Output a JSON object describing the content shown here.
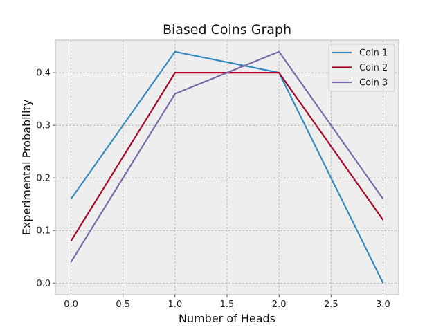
{
  "chart_data": {
    "type": "line",
    "title": "Biased Coins Graph",
    "xlabel": "Number of Heads",
    "ylabel": "Experimental Probability",
    "x": [
      0,
      1,
      2,
      3
    ],
    "xlim": [
      -0.15,
      3.15
    ],
    "ylim": [
      -0.022,
      0.462
    ],
    "xticks": [
      "0.0",
      "0.5",
      "1.0",
      "1.5",
      "2.0",
      "2.5",
      "3.0"
    ],
    "yticks": [
      "0.0",
      "0.1",
      "0.2",
      "0.3",
      "0.4"
    ],
    "grid": true,
    "legend_position": "top-right",
    "series": [
      {
        "name": "Coin 1",
        "color": "#348ABD",
        "values": [
          0.16,
          0.44,
          0.4,
          0.0
        ]
      },
      {
        "name": "Coin 2",
        "color": "#A60628",
        "values": [
          0.08,
          0.4,
          0.4,
          0.12
        ]
      },
      {
        "name": "Coin 3",
        "color": "#7A68A6",
        "values": [
          0.04,
          0.36,
          0.44,
          0.16
        ]
      }
    ]
  }
}
